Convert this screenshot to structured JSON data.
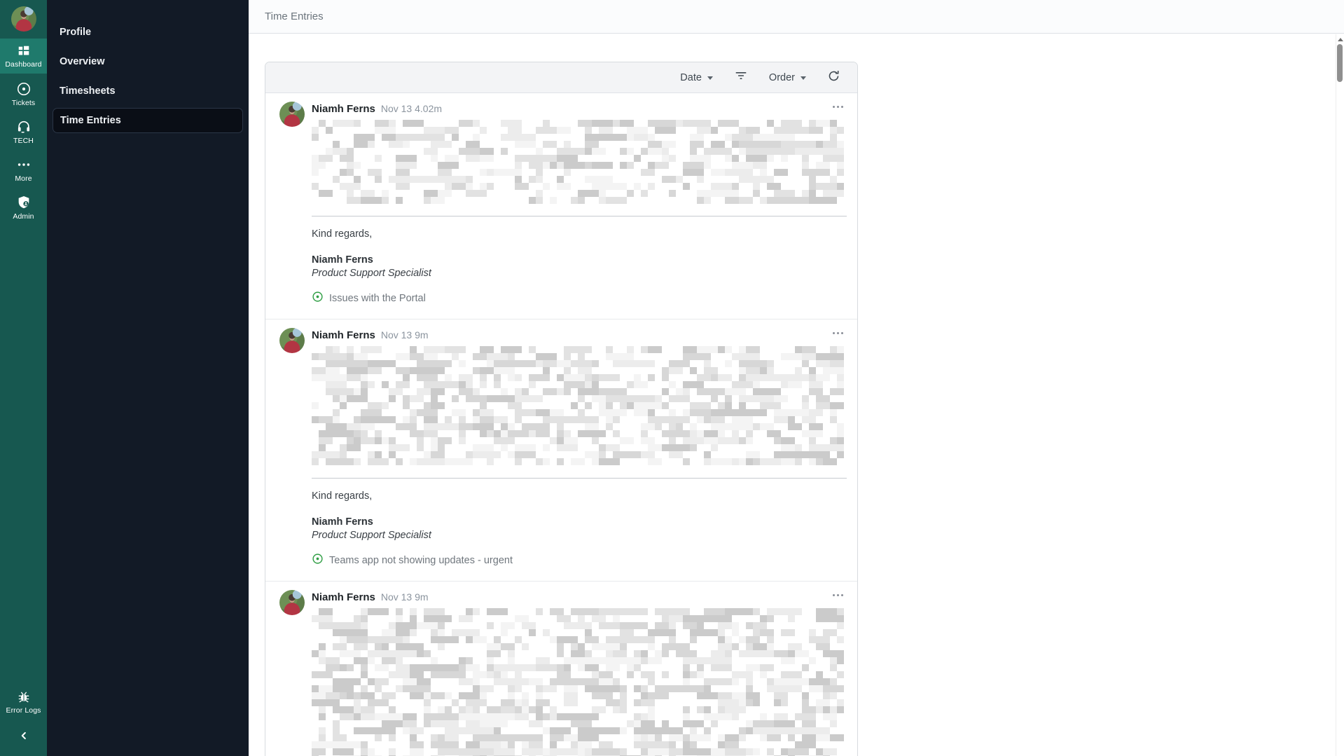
{
  "rail": {
    "items": [
      {
        "label": "Dashboard",
        "icon": "grid-icon",
        "active": true
      },
      {
        "label": "Tickets",
        "icon": "record-circle-icon",
        "active": false
      },
      {
        "label": "TECH",
        "icon": "headset-icon",
        "active": false
      },
      {
        "label": "More",
        "icon": "ellipsis-icon",
        "active": false
      },
      {
        "label": "Admin",
        "icon": "shield-user-icon",
        "active": false
      }
    ],
    "error_logs_label": "Error Logs"
  },
  "sidebar": {
    "items": [
      {
        "label": "Profile",
        "active": false
      },
      {
        "label": "Overview",
        "active": false
      },
      {
        "label": "Timesheets",
        "active": false
      },
      {
        "label": "Time Entries",
        "active": true
      }
    ]
  },
  "header": {
    "title": "Time Entries"
  },
  "toolbar": {
    "date_label": "Date",
    "order_label": "Order"
  },
  "entries": [
    {
      "author": "Niamh Ferns",
      "timestamp": "Nov 13 4.02m",
      "closing": "Kind regards,",
      "signature_name": "Niamh Ferns",
      "signature_role": "Product Support Specialist",
      "ticket": "Issues with the Portal"
    },
    {
      "author": "Niamh Ferns",
      "timestamp": "Nov 13 9m",
      "closing": "Kind regards,",
      "signature_name": "Niamh Ferns",
      "signature_role": "Product Support Specialist",
      "ticket": "Teams app not showing updates - urgent"
    },
    {
      "author": "Niamh Ferns",
      "timestamp": "Nov 13 9m"
    }
  ],
  "colors": {
    "rail_teal": "#175850",
    "rail_active_teal": "#1f7a6c",
    "sidebar_navy": "#121a26",
    "ticket_green": "#2f9e44"
  }
}
